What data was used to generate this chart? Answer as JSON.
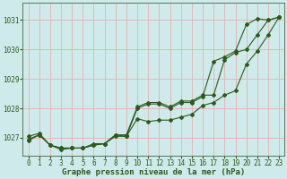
{
  "title": "Graphe pression niveau de la mer (hPa)",
  "background_color": "#ceeaea",
  "grid_color": "#e8b0b0",
  "line_color": "#2d5a1b",
  "xlim": [
    -0.5,
    23.5
  ],
  "ylim": [
    1026.4,
    1031.6
  ],
  "yticks": [
    1027,
    1028,
    1029,
    1030,
    1031
  ],
  "xticks": [
    0,
    1,
    2,
    3,
    4,
    5,
    6,
    7,
    8,
    9,
    10,
    11,
    12,
    13,
    14,
    15,
    16,
    17,
    18,
    19,
    20,
    21,
    22,
    23
  ],
  "line1_x": [
    0,
    1,
    2,
    3,
    4,
    5,
    6,
    7,
    8,
    9,
    10,
    11,
    12,
    13,
    14,
    15,
    16,
    17,
    18,
    19,
    20,
    21,
    22,
    23
  ],
  "line1_y": [
    1026.9,
    1027.1,
    1026.75,
    1026.6,
    1026.65,
    1026.65,
    1026.75,
    1026.8,
    1027.1,
    1027.05,
    1027.65,
    1027.55,
    1027.6,
    1027.6,
    1027.7,
    1027.8,
    1028.1,
    1028.2,
    1028.45,
    1028.6,
    1029.5,
    1029.95,
    1030.5,
    1031.1
  ],
  "line2_x": [
    0,
    1,
    2,
    3,
    4,
    5,
    6,
    7,
    8,
    9,
    10,
    11,
    12,
    13,
    14,
    15,
    16,
    17,
    18,
    19,
    20,
    21,
    22,
    23
  ],
  "line2_y": [
    1027.05,
    1027.15,
    1026.75,
    1026.65,
    1026.65,
    1026.65,
    1026.8,
    1026.8,
    1027.1,
    1027.1,
    1028.05,
    1028.2,
    1028.2,
    1028.05,
    1028.25,
    1028.25,
    1028.45,
    1028.45,
    1029.65,
    1029.9,
    1030.0,
    1030.5,
    1031.0,
    1031.1
  ],
  "line3_x": [
    0,
    1,
    2,
    3,
    4,
    5,
    6,
    7,
    8,
    9,
    10,
    11,
    12,
    13,
    14,
    15,
    16,
    17,
    18,
    19,
    20,
    21,
    22,
    23
  ],
  "line3_y": [
    1026.95,
    1027.1,
    1026.75,
    1026.65,
    1026.65,
    1026.65,
    1026.75,
    1026.8,
    1027.05,
    1027.05,
    1028.0,
    1028.15,
    1028.15,
    1028.0,
    1028.2,
    1028.2,
    1028.4,
    1029.6,
    1029.75,
    1029.95,
    1030.85,
    1031.05,
    1031.0,
    1031.1
  ],
  "tick_fontsize": 5.5,
  "xlabel_fontsize": 6.5,
  "marker_size": 2.0,
  "line_width": 0.8
}
